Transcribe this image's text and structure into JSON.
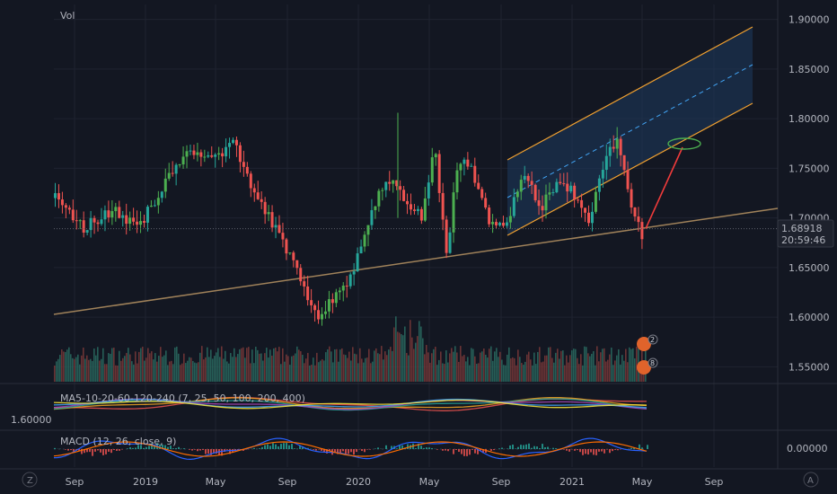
{
  "chart_data": {
    "type": "candlestick",
    "panel_label": "Vol",
    "price_axis": {
      "ticks": [
        "1.90000",
        "1.85000",
        "1.80000",
        "1.75000",
        "1.70000",
        "1.65000",
        "1.60000",
        "1.55000"
      ],
      "ylim": [
        1.535,
        1.915
      ]
    },
    "current_price": "1.68918",
    "countdown": "20:59:46",
    "x_axis": {
      "ticks": [
        "Sep",
        "2019",
        "May",
        "Sep",
        "2020",
        "May",
        "Sep",
        "2021",
        "May",
        "Sep"
      ]
    },
    "price_path": [
      [
        0,
        1.72
      ],
      [
        5,
        1.69
      ],
      [
        10,
        1.71
      ],
      [
        14,
        1.69
      ],
      [
        18,
        1.73
      ],
      [
        23,
        1.77
      ],
      [
        27,
        1.76
      ],
      [
        30,
        1.78
      ],
      [
        33,
        1.73
      ],
      [
        37,
        1.69
      ],
      [
        40,
        1.66
      ],
      [
        42,
        1.63
      ],
      [
        44,
        1.6
      ],
      [
        47,
        1.62
      ],
      [
        50,
        1.64
      ],
      [
        53,
        1.7
      ],
      [
        56,
        1.74
      ],
      [
        59,
        1.72
      ],
      [
        62,
        1.7
      ],
      [
        64,
        1.77
      ],
      [
        66,
        1.66
      ],
      [
        68,
        1.76
      ],
      [
        70,
        1.75
      ],
      [
        73,
        1.7
      ],
      [
        76,
        1.69
      ],
      [
        79,
        1.75
      ],
      [
        82,
        1.71
      ],
      [
        85,
        1.74
      ],
      [
        88,
        1.72
      ],
      [
        90,
        1.7
      ],
      [
        93,
        1.76
      ],
      [
        95,
        1.78
      ],
      [
        97,
        1.72
      ],
      [
        99,
        1.68
      ]
    ],
    "volume_badges": [
      "2",
      "8"
    ],
    "ma_indicator": {
      "label": "MA5-10-20-60-120-240 (7, 25, 50, 100, 200, 400)",
      "axis_value": "1.60000",
      "colors": [
        "#ef5350",
        "#f5a623",
        "#26a69a",
        "#ab47bc",
        "#42a5f5",
        "#ffeb3b"
      ]
    },
    "macd_indicator": {
      "label": "MACD (12, 26, close, 9)",
      "axis_value": "0.00000"
    },
    "colors": {
      "up": "#26a69a",
      "up_bright": "#4caf50",
      "down": "#ef5350",
      "channel": "#f0a030",
      "trend": "#a0825a"
    }
  },
  "corner_icons": {
    "left": "Z",
    "right": "A"
  }
}
